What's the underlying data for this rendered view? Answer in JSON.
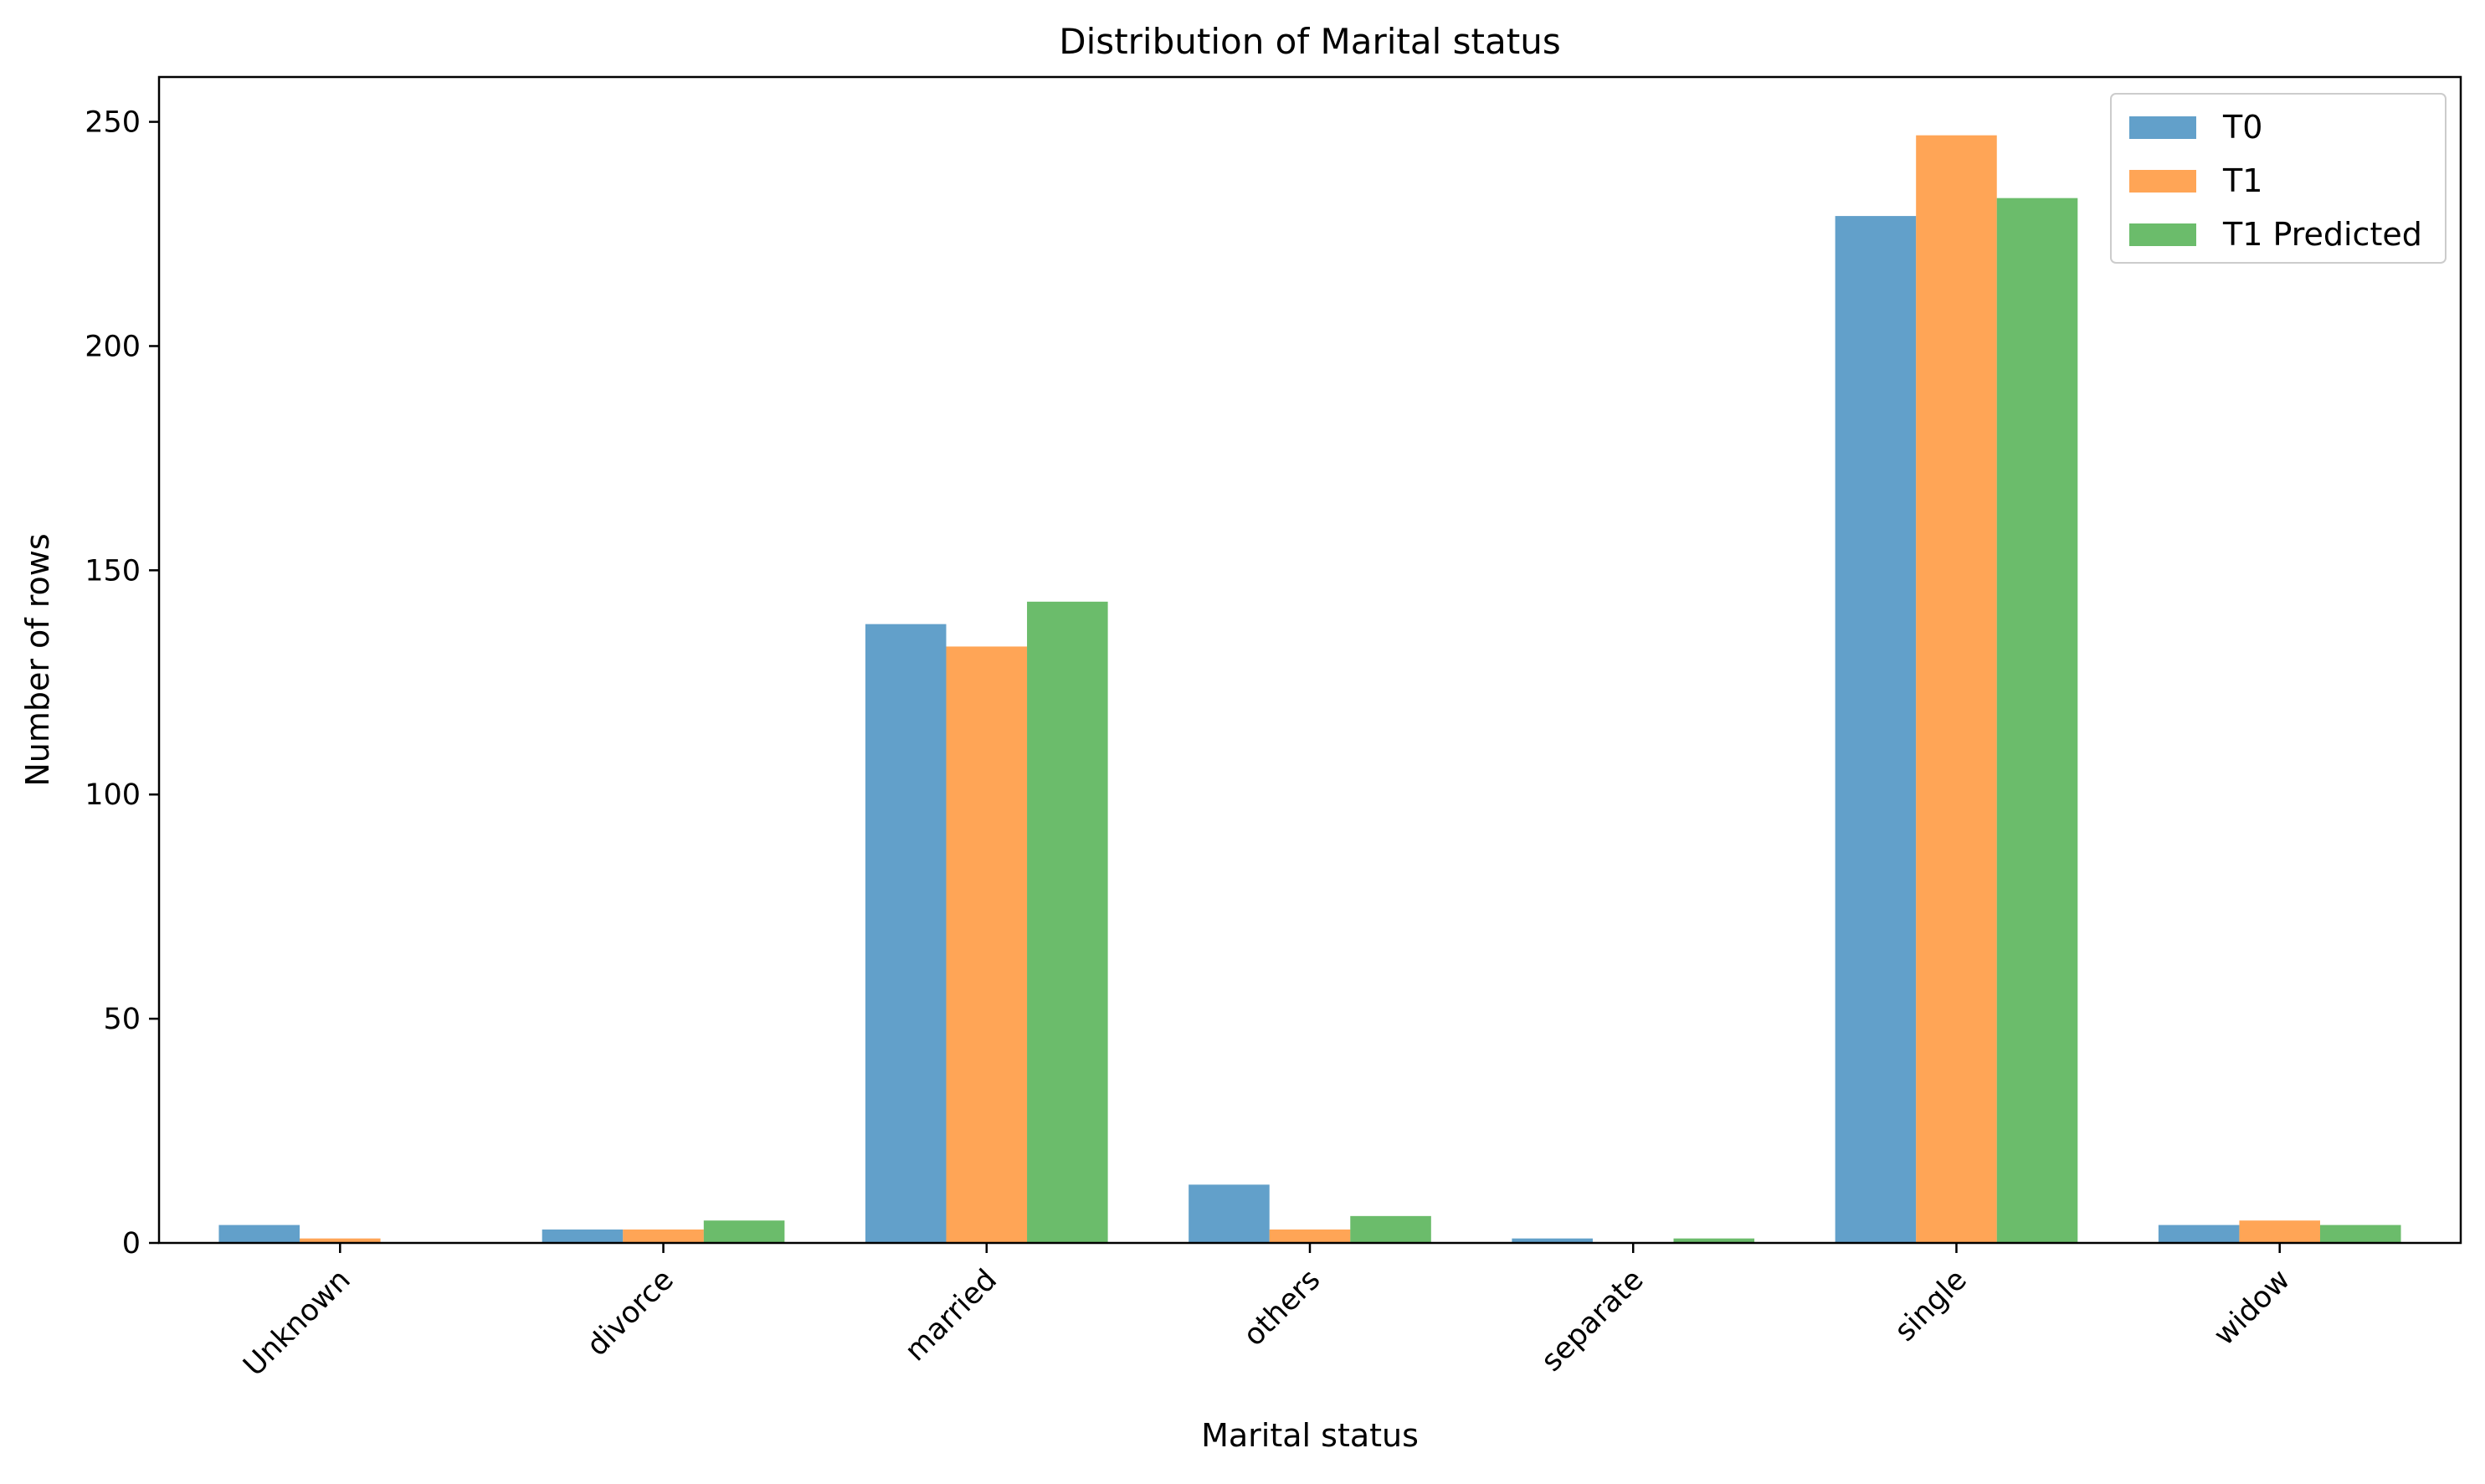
{
  "chart_data": {
    "type": "bar",
    "title": "Distribution of Marital status",
    "xlabel": "Marital status",
    "ylabel": "Number of rows",
    "categories": [
      "Unknown",
      "divorce",
      "married",
      "others",
      "separate",
      "single",
      "widow"
    ],
    "series": [
      {
        "name": "T0",
        "color": "#1f77b4",
        "values": [
          4,
          3,
          138,
          13,
          1,
          229,
          4
        ]
      },
      {
        "name": "T1",
        "color": "#ff7f0e",
        "values": [
          1,
          3,
          133,
          3,
          0,
          247,
          5
        ]
      },
      {
        "name": "T1 Predicted",
        "color": "#2ca02c",
        "values": [
          0,
          5,
          143,
          6,
          1,
          233,
          4
        ]
      }
    ],
    "ylim": [
      0,
      260
    ],
    "yticks": [
      0,
      50,
      100,
      150,
      200,
      250
    ],
    "ytick_labels": [
      "0",
      "50",
      "100",
      "150",
      "200",
      "250"
    ],
    "bar_opacity": 0.7,
    "grid": false,
    "legend_position": "top-right",
    "xtick_rotation": 45
  }
}
